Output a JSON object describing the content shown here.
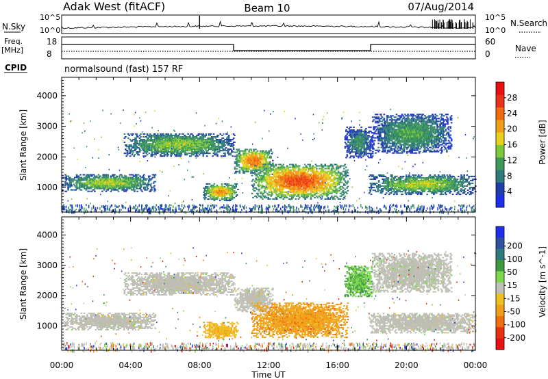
{
  "header": {
    "radar": "Adak West (fitACF)",
    "beam": "Beam 10",
    "date": "07/Aug/2014"
  },
  "aux": {
    "nsky_label": "N.Sky",
    "nsearch_label": "N.Search",
    "noise_ticks": [
      "10^5",
      "10^0"
    ],
    "freq_label": "Freq.",
    "freq_unit": "[MHz]",
    "freq_ticks": [
      "18",
      "8"
    ],
    "nave_label": "Nave",
    "nave_ticks": [
      "60",
      "0"
    ],
    "cpid_label": "CPID",
    "cpid_text": "normalsound (fast) 157 RF"
  },
  "colors": {
    "power": [
      "#1f2ee8",
      "#1f3fa8",
      "#2f7a7a",
      "#3f9a5a",
      "#7ec83c",
      "#e8d21c",
      "#f0a018",
      "#f26a10",
      "#e8301a",
      "#e81010"
    ],
    "velocity": [
      "#1f2ee8",
      "#2f4fa0",
      "#2f7a7a",
      "#3f9a3f",
      "#7ed84c",
      "#c0c0b8",
      "#f0c020",
      "#f0a018",
      "#f07010",
      "#e83010",
      "#e81010"
    ],
    "ground_scatter": "#bdbdb4"
  },
  "chart_data": [
    {
      "type": "heatmap",
      "title": "Power",
      "xlabel": "Time UT",
      "ylabel": "Slant Range [km]",
      "x_ticks": [
        "00:00",
        "04:00",
        "08:00",
        "12:00",
        "16:00",
        "20:00",
        "00:00"
      ],
      "x_range_hours": [
        0,
        24
      ],
      "y_ticks": [
        1000,
        2000,
        3000,
        4000
      ],
      "ylim": [
        200,
        4600
      ],
      "colorbar": {
        "label": "Power [dB]",
        "ticks": [
          4,
          8,
          12,
          16,
          20,
          24,
          28
        ],
        "range": [
          0,
          32
        ]
      },
      "regions": [
        {
          "t0": 0.0,
          "t1": 5.4,
          "r0": 900,
          "r1": 1450,
          "peak": 16
        },
        {
          "t0": 3.6,
          "t1": 10.0,
          "r0": 2050,
          "r1": 2800,
          "peak": 15
        },
        {
          "t0": 8.2,
          "t1": 10.2,
          "r0": 600,
          "r1": 1150,
          "peak": 22
        },
        {
          "t0": 10.0,
          "t1": 12.2,
          "r0": 1500,
          "r1": 2300,
          "peak": 24
        },
        {
          "t0": 11.0,
          "t1": 16.6,
          "r0": 650,
          "r1": 1800,
          "peak": 26
        },
        {
          "t0": 16.4,
          "t1": 18.0,
          "r0": 2000,
          "r1": 3000,
          "peak": 10
        },
        {
          "t0": 17.8,
          "t1": 24.0,
          "r0": 800,
          "r1": 1450,
          "peak": 16
        },
        {
          "t0": 18.0,
          "t1": 22.6,
          "r0": 2150,
          "r1": 3450,
          "peak": 12
        }
      ]
    },
    {
      "type": "heatmap",
      "title": "Velocity",
      "xlabel": "Time UT",
      "ylabel": "Slant Range [km]",
      "x_ticks": [
        "00:00",
        "04:00",
        "08:00",
        "12:00",
        "16:00",
        "20:00",
        "00:00"
      ],
      "x_range_hours": [
        0,
        24
      ],
      "y_ticks": [
        1000,
        2000,
        3000,
        4000
      ],
      "ylim": [
        200,
        4600
      ],
      "colorbar": {
        "label": "Velocity [m s^-1]",
        "ticks": [
          "200",
          "100",
          "50",
          "15",
          "-15",
          "-50",
          "-100",
          "-200"
        ]
      },
      "regions": [
        {
          "t0": 0.0,
          "t1": 5.4,
          "r0": 900,
          "r1": 1450,
          "v": 0
        },
        {
          "t0": 3.6,
          "t1": 10.0,
          "r0": 2050,
          "r1": 2800,
          "v": 0
        },
        {
          "t0": 8.2,
          "t1": 10.2,
          "r0": 600,
          "r1": 1150,
          "v": -40
        },
        {
          "t0": 10.0,
          "t1": 12.2,
          "r0": 1500,
          "r1": 2300,
          "v": 0
        },
        {
          "t0": 11.0,
          "t1": 16.6,
          "r0": 650,
          "r1": 1800,
          "v": -60
        },
        {
          "t0": 16.4,
          "t1": 18.0,
          "r0": 2000,
          "r1": 3000,
          "v": 40
        },
        {
          "t0": 17.8,
          "t1": 24.0,
          "r0": 800,
          "r1": 1450,
          "v": 0
        },
        {
          "t0": 18.0,
          "t1": 22.6,
          "r0": 2150,
          "r1": 3450,
          "v": 10
        }
      ]
    }
  ]
}
